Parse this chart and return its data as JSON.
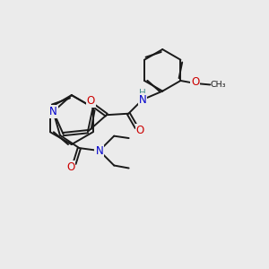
{
  "background_color": "#ebebeb",
  "bond_color": "#1a1a1a",
  "nitrogen_color": "#0000cd",
  "oxygen_color": "#cc0000",
  "hydrogen_color": "#4a9090",
  "line_width": 1.4,
  "figsize": [
    3.0,
    3.0
  ],
  "dpi": 100,
  "xlim": [
    0,
    10
  ],
  "ylim": [
    0,
    10
  ]
}
